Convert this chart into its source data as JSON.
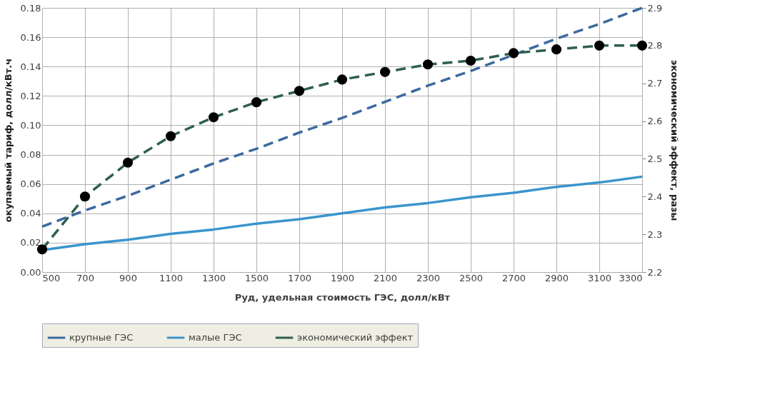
{
  "chart_data": {
    "type": "line",
    "xlabel": "Руд, удельная стоимость ГЭС, долл/кВт",
    "ylabel": "окупаемый тариф, долл/кВт.ч",
    "y2label": "экономичеcкий эффект, разы",
    "x": [
      500,
      700,
      900,
      1100,
      1300,
      1500,
      1700,
      1900,
      2100,
      2300,
      2500,
      2700,
      2900,
      3100,
      3300
    ],
    "xlim": [
      500,
      3300
    ],
    "xticks": [
      500,
      700,
      900,
      1100,
      1300,
      1500,
      1700,
      1900,
      2100,
      2300,
      2500,
      2700,
      2900,
      3100,
      3300
    ],
    "ylim": [
      0,
      0.18
    ],
    "yticks": [
      {
        "value": 0,
        "label": "0.00"
      },
      {
        "value": 0.02,
        "label": "0.02"
      },
      {
        "value": 0.04,
        "label": "0.04"
      },
      {
        "value": 0.06,
        "label": "0.06"
      },
      {
        "value": 0.08,
        "label": "0.08"
      },
      {
        "value": 0.1,
        "label": "0.10"
      },
      {
        "value": 0.12,
        "label": "0.12"
      },
      {
        "value": 0.14,
        "label": "0.14"
      },
      {
        "value": 0.16,
        "label": "0.16"
      },
      {
        "value": 0.18,
        "label": "0.18"
      }
    ],
    "y2lim": [
      2.2,
      2.9
    ],
    "y2ticks": [
      {
        "value": 2.2,
        "label": "2.2"
      },
      {
        "value": 2.3,
        "label": "2.3"
      },
      {
        "value": 2.4,
        "label": "2.4"
      },
      {
        "value": 2.5,
        "label": "2.5"
      },
      {
        "value": 2.6,
        "label": "2.6"
      },
      {
        "value": 2.7,
        "label": "2.7"
      },
      {
        "value": 2.8,
        "label": "2.8"
      },
      {
        "value": 2.9,
        "label": "2.9"
      }
    ],
    "grid": true,
    "legend": "bottom",
    "series": [
      {
        "name": "крупные ГЭС",
        "color": "#3b6a9e",
        "line_style": "dashed",
        "marker": "none",
        "values": [
          0.031,
          0.042,
          0.052,
          0.063,
          0.074,
          0.084,
          0.095,
          0.105,
          0.116,
          0.127,
          0.137,
          0.148,
          0.159,
          0.169,
          0.18
        ]
      },
      {
        "name": "малые ГЭС",
        "color": "#3a95cc",
        "line_style": "solid",
        "marker": "none",
        "values": [
          0.015,
          0.019,
          0.022,
          0.026,
          0.029,
          0.033,
          0.036,
          0.04,
          0.044,
          0.047,
          0.051,
          0.054,
          0.058,
          0.061,
          0.065
        ]
      },
      {
        "name": "экономический эффект",
        "color": "#2e5e50",
        "line_style": "dashed",
        "marker": "circle",
        "axis": "y2",
        "values": [
          2.26,
          2.4,
          2.49,
          2.56,
          2.61,
          2.65,
          2.68,
          2.71,
          2.73,
          2.75,
          2.76,
          2.78,
          2.79,
          2.8,
          2.8
        ]
      }
    ]
  }
}
